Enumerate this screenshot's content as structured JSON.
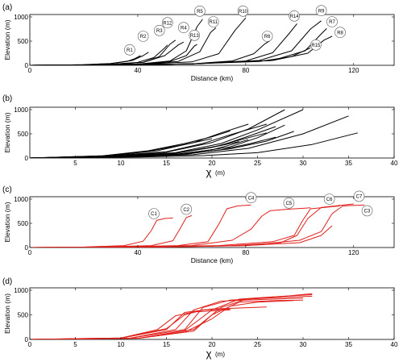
{
  "chart_data": [
    {
      "id": "a",
      "panel_label": "(a)",
      "type": "line",
      "xlabel": "Distance (km)",
      "ylabel": "Elevation (m)",
      "xlim": [
        0,
        135
      ],
      "ylim": [
        0,
        1050
      ],
      "xticks": [
        0,
        40,
        80,
        120
      ],
      "yticks": [
        0,
        500,
        1000
      ],
      "color": "#000000",
      "series": [
        {
          "name": "R1",
          "x": [
            0,
            10,
            20,
            30,
            36,
            39,
            41
          ],
          "y": [
            0,
            4,
            12,
            35,
            80,
            140,
            200
          ]
        },
        {
          "name": "R2",
          "x": [
            0,
            10,
            20,
            30,
            38,
            42,
            44
          ],
          "y": [
            0,
            4,
            12,
            38,
            100,
            200,
            270
          ]
        },
        {
          "name": "R3",
          "x": [
            0,
            15,
            30,
            40,
            46,
            50,
            51
          ],
          "y": [
            0,
            5,
            20,
            60,
            160,
            360,
            420
          ]
        },
        {
          "name": "R4",
          "x": [
            0,
            15,
            30,
            42,
            50,
            55,
            57
          ],
          "y": [
            0,
            5,
            18,
            60,
            200,
            420,
            480
          ]
        },
        {
          "name": "R12",
          "x": [
            0,
            15,
            30,
            42,
            48,
            52,
            54
          ],
          "y": [
            0,
            5,
            18,
            60,
            180,
            440,
            520
          ]
        },
        {
          "name": "R5",
          "x": [
            0,
            20,
            40,
            52,
            58,
            62,
            64
          ],
          "y": [
            0,
            6,
            25,
            90,
            300,
            800,
            950
          ]
        },
        {
          "name": "R13",
          "x": [
            0,
            20,
            40,
            52,
            58,
            61,
            62
          ],
          "y": [
            0,
            6,
            22,
            80,
            200,
            400,
            430
          ]
        },
        {
          "name": "R11",
          "x": [
            0,
            20,
            40,
            55,
            63,
            67,
            69
          ],
          "y": [
            0,
            6,
            22,
            80,
            280,
            680,
            780
          ]
        },
        {
          "name": "R10",
          "x": [
            0,
            20,
            40,
            60,
            70,
            76,
            80
          ],
          "y": [
            0,
            6,
            22,
            70,
            240,
            720,
            980
          ]
        },
        {
          "name": "R6",
          "x": [
            0,
            30,
            60,
            75,
            83,
            87,
            89
          ],
          "y": [
            0,
            8,
            30,
            90,
            240,
            440,
            510
          ]
        },
        {
          "name": "R14",
          "x": [
            0,
            30,
            60,
            80,
            90,
            96,
            99
          ],
          "y": [
            0,
            8,
            30,
            90,
            260,
            650,
            860
          ]
        },
        {
          "name": "R9",
          "x": [
            0,
            30,
            60,
            85,
            97,
            104,
            108
          ],
          "y": [
            0,
            8,
            30,
            100,
            300,
            750,
            920
          ]
        },
        {
          "name": "R15",
          "x": [
            0,
            30,
            60,
            85,
            97,
            102,
            104
          ],
          "y": [
            0,
            8,
            30,
            80,
            180,
            310,
            360
          ]
        },
        {
          "name": "R7",
          "x": [
            0,
            30,
            60,
            90,
            102,
            108,
            110
          ],
          "y": [
            0,
            8,
            30,
            100,
            300,
            650,
            760
          ]
        },
        {
          "name": "R8",
          "x": [
            0,
            30,
            60,
            90,
            103,
            109,
            112
          ],
          "y": [
            0,
            8,
            30,
            100,
            250,
            520,
            600
          ]
        }
      ],
      "annotations": [
        {
          "text": "R1",
          "x": 37,
          "y": 320
        },
        {
          "text": "R2",
          "x": 42,
          "y": 600
        },
        {
          "text": "R3",
          "x": 48,
          "y": 720
        },
        {
          "text": "R4",
          "x": 57,
          "y": 780
        },
        {
          "text": "R12",
          "x": 51,
          "y": 880
        },
        {
          "text": "R5",
          "x": 63,
          "y": 1120
        },
        {
          "text": "R13",
          "x": 61,
          "y": 620
        },
        {
          "text": "R11",
          "x": 68,
          "y": 900
        },
        {
          "text": "R10",
          "x": 79,
          "y": 1120
        },
        {
          "text": "R6",
          "x": 88,
          "y": 600
        },
        {
          "text": "R14",
          "x": 98,
          "y": 1020
        },
        {
          "text": "R9",
          "x": 108,
          "y": 1130
        },
        {
          "text": "R15",
          "x": 106,
          "y": 420
        },
        {
          "text": "R7",
          "x": 112,
          "y": 900
        },
        {
          "text": "R8",
          "x": 115,
          "y": 680
        }
      ]
    },
    {
      "id": "b",
      "panel_label": "(b)",
      "type": "line",
      "xlabel": "χ",
      "xlabel_unit": "(m)",
      "ylabel": "Elevation (m)",
      "xlim": [
        0,
        40
      ],
      "ylim": [
        0,
        1050
      ],
      "xticks": [
        5,
        10,
        15,
        20,
        25,
        30,
        35,
        40
      ],
      "yticks": [
        0,
        500,
        1000
      ],
      "color": "#000000",
      "series": [
        {
          "name": "",
          "x": [
            0,
            8,
            14,
            18,
            21,
            24
          ],
          "y": [
            0,
            40,
            150,
            320,
            520,
            700
          ]
        },
        {
          "name": "",
          "x": [
            0,
            8,
            15,
            19,
            22,
            26
          ],
          "y": [
            0,
            40,
            130,
            300,
            480,
            700
          ]
        },
        {
          "name": "",
          "x": [
            0,
            9,
            15,
            20,
            24,
            28
          ],
          "y": [
            0,
            35,
            120,
            320,
            600,
            1000
          ]
        },
        {
          "name": "",
          "x": [
            0,
            9,
            16,
            21,
            25,
            30
          ],
          "y": [
            0,
            35,
            110,
            300,
            580,
            1000
          ]
        },
        {
          "name": "",
          "x": [
            0,
            9,
            16,
            21,
            24,
            27
          ],
          "y": [
            0,
            35,
            100,
            260,
            450,
            650
          ]
        },
        {
          "name": "",
          "x": [
            0,
            9,
            16,
            20,
            23,
            26
          ],
          "y": [
            0,
            35,
            100,
            220,
            370,
            520
          ]
        },
        {
          "name": "",
          "x": [
            0,
            10,
            17,
            22,
            25,
            28
          ],
          "y": [
            0,
            30,
            90,
            230,
            420,
            680
          ]
        },
        {
          "name": "",
          "x": [
            0,
            10,
            17,
            22,
            26,
            29
          ],
          "y": [
            0,
            30,
            80,
            190,
            350,
            550
          ]
        },
        {
          "name": "",
          "x": [
            0,
            10,
            16,
            20,
            22,
            24
          ],
          "y": [
            0,
            30,
            80,
            170,
            270,
            380
          ]
        },
        {
          "name": "",
          "x": [
            0,
            10,
            17,
            21,
            24,
            27
          ],
          "y": [
            0,
            30,
            80,
            170,
            290,
            430
          ]
        },
        {
          "name": "",
          "x": [
            0,
            11,
            18,
            24,
            30,
            35
          ],
          "y": [
            0,
            25,
            70,
            200,
            500,
            870
          ]
        },
        {
          "name": "",
          "x": [
            0,
            12,
            19,
            25,
            31,
            36
          ],
          "y": [
            0,
            20,
            50,
            110,
            280,
            520
          ]
        },
        {
          "name": "",
          "x": [
            0,
            8,
            13,
            17,
            20
          ],
          "y": [
            0,
            45,
            140,
            280,
            400
          ]
        },
        {
          "name": "",
          "x": [
            0,
            8,
            13,
            17,
            20,
            22
          ],
          "y": [
            0,
            45,
            150,
            300,
            440,
            560
          ]
        },
        {
          "name": "",
          "x": [
            0,
            10,
            16,
            20,
            23
          ],
          "y": [
            0,
            30,
            100,
            220,
            340
          ]
        }
      ]
    },
    {
      "id": "c",
      "panel_label": "(c)",
      "type": "line",
      "xlabel": "Distance (km)",
      "ylabel": "Elevation (m)",
      "xlim": [
        0,
        135
      ],
      "ylim": [
        0,
        1050
      ],
      "xticks": [
        0,
        40,
        80,
        120
      ],
      "yticks": [
        0,
        500,
        1000
      ],
      "color": "#e0201a",
      "series": [
        {
          "name": "C1",
          "x": [
            0,
            20,
            35,
            42,
            45,
            47,
            50,
            53
          ],
          "y": [
            0,
            10,
            40,
            130,
            350,
            560,
            600,
            610
          ]
        },
        {
          "name": "C2",
          "x": [
            0,
            25,
            45,
            53,
            56,
            58,
            60
          ],
          "y": [
            0,
            10,
            40,
            140,
            420,
            620,
            660
          ]
        },
        {
          "name": "C4",
          "x": [
            0,
            30,
            55,
            66,
            70,
            73,
            77,
            82
          ],
          "y": [
            0,
            10,
            40,
            120,
            480,
            800,
            860,
            880
          ]
        },
        {
          "name": "C5",
          "x": [
            0,
            35,
            60,
            75,
            82,
            86,
            89,
            95,
            104
          ],
          "y": [
            0,
            10,
            40,
            150,
            380,
            650,
            760,
            790,
            820
          ]
        },
        {
          "name": "C6",
          "x": [
            0,
            40,
            70,
            90,
            98,
            101,
            104,
            115
          ],
          "y": [
            0,
            10,
            40,
            120,
            250,
            550,
            800,
            860
          ]
        },
        {
          "name": "C7",
          "x": [
            0,
            45,
            75,
            93,
            99,
            103,
            108,
            120
          ],
          "y": [
            0,
            10,
            40,
            100,
            250,
            600,
            830,
            900
          ]
        },
        {
          "name": "C3",
          "x": [
            0,
            50,
            80,
            100,
            108,
            112,
            116,
            124
          ],
          "y": [
            0,
            10,
            40,
            150,
            330,
            700,
            860,
            880
          ]
        },
        {
          "name": "",
          "x": [
            0,
            45,
            80,
            100,
            108,
            112
          ],
          "y": [
            0,
            10,
            40,
            100,
            250,
            450
          ]
        }
      ],
      "annotations": [
        {
          "text": "C1",
          "x": 46,
          "y": 700
        },
        {
          "text": "C2",
          "x": 58,
          "y": 790
        },
        {
          "text": "C4",
          "x": 82,
          "y": 1030
        },
        {
          "text": "C5",
          "x": 96,
          "y": 920
        },
        {
          "text": "C6",
          "x": 111,
          "y": 1000
        },
        {
          "text": "C7",
          "x": 122,
          "y": 1060
        },
        {
          "text": "C3",
          "x": 125,
          "y": 760
        }
      ]
    },
    {
      "id": "d",
      "panel_label": "(d)",
      "type": "line",
      "xlabel": "χ",
      "xlabel_unit": "(m)",
      "ylabel": "Elevation (m)",
      "xlim": [
        0,
        40
      ],
      "ylim": [
        0,
        1050
      ],
      "xticks": [
        0,
        5,
        10,
        15,
        20,
        25,
        30,
        35,
        40
      ],
      "yticks": [
        0,
        500,
        1000
      ],
      "color": "#e0201a",
      "series": [
        {
          "name": "",
          "x": [
            0,
            10,
            14,
            16,
            18,
            22
          ],
          "y": [
            0,
            30,
            200,
            480,
            560,
            600
          ]
        },
        {
          "name": "",
          "x": [
            0,
            10,
            15,
            17,
            19,
            22
          ],
          "y": [
            0,
            30,
            220,
            500,
            600,
            620
          ]
        },
        {
          "name": "",
          "x": [
            0,
            10,
            15,
            17,
            20,
            26
          ],
          "y": [
            0,
            25,
            200,
            550,
            620,
            660
          ]
        },
        {
          "name": "",
          "x": [
            0,
            11,
            16,
            18,
            21,
            25,
            30
          ],
          "y": [
            0,
            25,
            200,
            600,
            780,
            810,
            840
          ]
        },
        {
          "name": "",
          "x": [
            0,
            11,
            17,
            19,
            22,
            26,
            31
          ],
          "y": [
            0,
            25,
            200,
            650,
            800,
            840,
            880
          ]
        },
        {
          "name": "",
          "x": [
            0,
            12,
            17,
            20,
            23,
            27,
            31
          ],
          "y": [
            0,
            25,
            180,
            600,
            820,
            870,
            910
          ]
        },
        {
          "name": "",
          "x": [
            0,
            12,
            18,
            21,
            24,
            28,
            31
          ],
          "y": [
            0,
            25,
            200,
            650,
            830,
            880,
            930
          ]
        },
        {
          "name": "",
          "x": [
            0,
            12,
            18,
            20,
            23,
            27,
            30
          ],
          "y": [
            0,
            25,
            170,
            500,
            760,
            790,
            800
          ]
        },
        {
          "name": "",
          "x": [
            0,
            12,
            17,
            20,
            22,
            25,
            29
          ],
          "y": [
            0,
            25,
            150,
            420,
            680,
            760,
            790
          ]
        }
      ]
    }
  ]
}
